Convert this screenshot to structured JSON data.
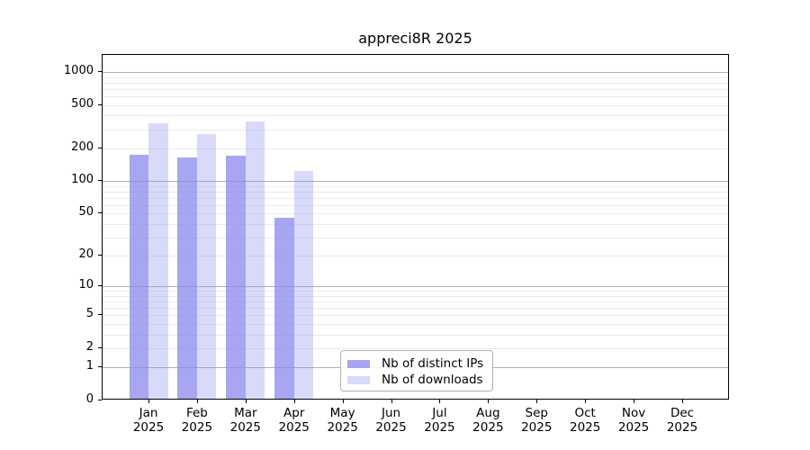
{
  "chart_data": {
    "type": "bar",
    "title": "appreci8R 2025",
    "categories": [
      "Jan 2025",
      "Feb 2025",
      "Mar 2025",
      "Apr 2025",
      "May 2025",
      "Jun 2025",
      "Jul 2025",
      "Aug 2025",
      "Sep 2025",
      "Oct 2025",
      "Nov 2025",
      "Dec 2025"
    ],
    "series": [
      {
        "name": "Nb of distinct IPs",
        "color": "#8888ee",
        "fill_opacity": 0.75,
        "values": [
          170,
          163,
          167,
          45,
          0,
          0,
          0,
          0,
          0,
          0,
          0,
          0
        ]
      },
      {
        "name": "Nb of downloads",
        "color": "#8888ee",
        "fill_opacity": 0.32,
        "values": [
          331,
          265,
          348,
          121,
          0,
          0,
          0,
          0,
          0,
          0,
          0,
          0
        ]
      }
    ],
    "xlabel": "",
    "ylabel": "",
    "yticks": [
      0,
      1,
      2,
      5,
      10,
      20,
      50,
      100,
      200,
      500,
      1000
    ],
    "major_grid_values": [
      1,
      10,
      100,
      1000
    ],
    "scale": "log10(value+1)",
    "ylim": [
      0,
      1434
    ],
    "grid": true,
    "legend_position": "inside lower center"
  }
}
